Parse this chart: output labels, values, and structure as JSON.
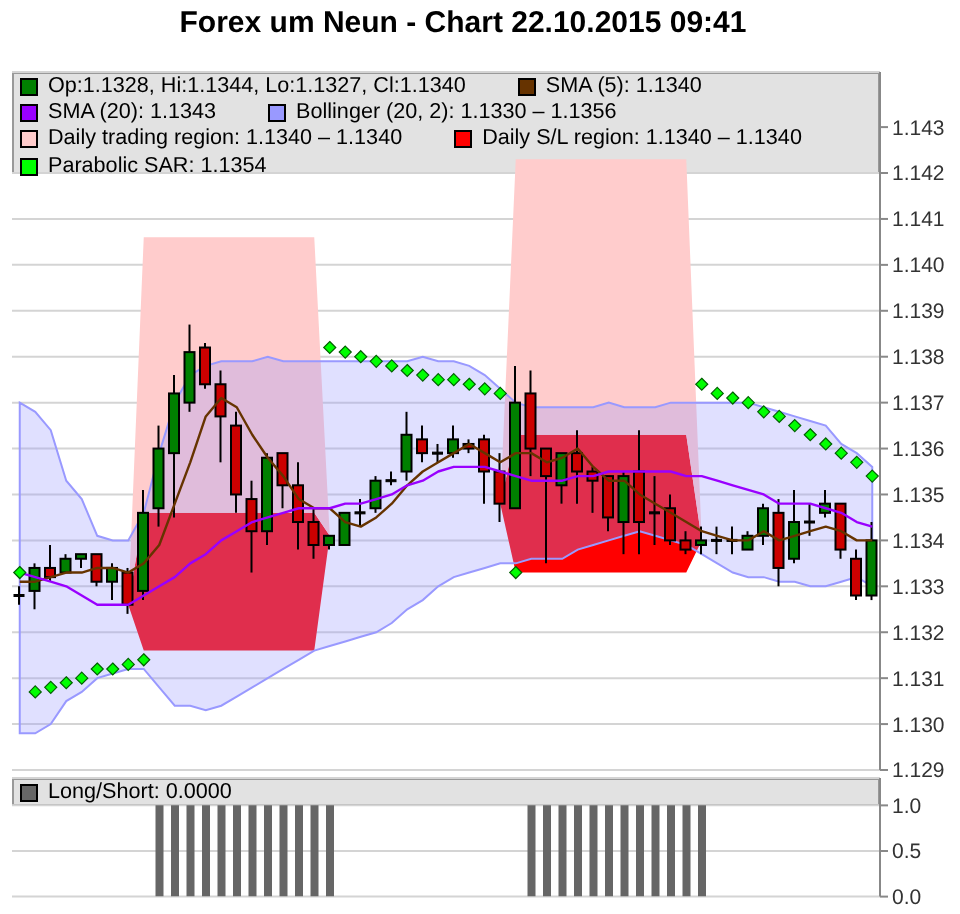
{
  "chart_data": [
    {
      "type": "candlestick",
      "title": "Forex um Neun - Chart 22.10.2015 09:41",
      "categories": [
        null,
        null,
        null,
        null,
        null,
        null,
        null,
        null,
        null,
        null,
        null,
        null,
        null,
        null,
        null,
        null,
        null,
        null,
        null,
        null,
        null,
        null,
        null,
        null,
        null,
        null,
        null,
        null,
        null,
        null,
        null,
        null,
        null,
        null,
        null,
        null,
        null,
        null,
        null,
        null,
        null,
        null,
        null,
        null,
        null,
        null,
        null,
        null,
        null,
        null,
        null,
        null,
        null,
        null,
        null,
        null
      ],
      "series": [
        {
          "name": "Op:1.1328, Hi:1.1344, Lo:1.1327, Cl:1.1340",
          "color": "#008000",
          "colors": [
            "#000000",
            "#008000",
            "#cc0000",
            "#008000",
            "#008000",
            "#cc0000",
            "#008000",
            "#cc0000",
            "#008000",
            "#008000",
            "#008000",
            "#008000",
            "#cc0000",
            "#cc0000",
            "#cc0000",
            "#cc0000",
            "#008000",
            "#cc0000",
            "#cc0000",
            "#cc0000",
            "#008000",
            "#008000",
            "#000000",
            "#008000",
            "#000000",
            "#008000",
            "#cc0000",
            "#000000",
            "#008000",
            "#cc0000",
            "#cc0000",
            "#cc0000",
            "#008000",
            "#cc0000",
            "#cc0000",
            "#008000",
            "#cc0000",
            "#cc0000",
            "#cc0000",
            "#008000",
            "#cc0000",
            "#000000",
            "#cc0000",
            "#cc0000",
            "#008000",
            "#000000",
            "#000000",
            "#008000",
            "#008000",
            "#cc0000",
            "#008000",
            "#000000",
            "#008000",
            "#cc0000",
            "#cc0000",
            "#008000"
          ],
          "ohlc": [
            [
              1.1328,
              1.133,
              1.1326,
              1.1328
            ],
            [
              1.1329,
              1.1335,
              1.1325,
              1.1334
            ],
            [
              1.1334,
              1.1339,
              1.1331,
              1.1332
            ],
            [
              1.1333,
              1.1337,
              1.1333,
              1.1336
            ],
            [
              1.1336,
              1.1337,
              1.1334,
              1.1337
            ],
            [
              1.1337,
              1.1337,
              1.133,
              1.1331
            ],
            [
              1.1331,
              1.1335,
              1.1327,
              1.1334
            ],
            [
              1.1333,
              1.1334,
              1.1324,
              1.1326
            ],
            [
              1.1329,
              1.1351,
              1.1327,
              1.1346
            ],
            [
              1.1347,
              1.1365,
              1.1343,
              1.136
            ],
            [
              1.1359,
              1.1376,
              1.1345,
              1.1372
            ],
            [
              1.137,
              1.1387,
              1.1368,
              1.1381
            ],
            [
              1.1382,
              1.1383,
              1.1373,
              1.1374
            ],
            [
              1.1374,
              1.1377,
              1.1357,
              1.1367
            ],
            [
              1.1365,
              1.1368,
              1.1346,
              1.135
            ],
            [
              1.1349,
              1.1353,
              1.1333,
              1.1342
            ],
            [
              1.1342,
              1.1359,
              1.1339,
              1.1358
            ],
            [
              1.1359,
              1.1359,
              1.1347,
              1.1352
            ],
            [
              1.1352,
              1.1357,
              1.1338,
              1.1344
            ],
            [
              1.1344,
              1.1347,
              1.1336,
              1.1339
            ],
            [
              1.1339,
              1.1341,
              1.1338,
              1.1341
            ],
            [
              1.1339,
              1.1346,
              1.1339,
              1.1346
            ],
            [
              1.1346,
              1.1349,
              1.1343,
              1.1346
            ],
            [
              1.1347,
              1.1354,
              1.1346,
              1.1353
            ],
            [
              1.1353,
              1.1355,
              1.1352,
              1.1353
            ],
            [
              1.1355,
              1.1368,
              1.1353,
              1.1363
            ],
            [
              1.1362,
              1.1365,
              1.1357,
              1.1359
            ],
            [
              1.1359,
              1.1361,
              1.1357,
              1.1359
            ],
            [
              1.1359,
              1.1365,
              1.1358,
              1.1362
            ],
            [
              1.1361,
              1.1362,
              1.1359,
              1.136
            ],
            [
              1.1362,
              1.1363,
              1.1348,
              1.1355
            ],
            [
              1.1355,
              1.1359,
              1.1344,
              1.1348
            ],
            [
              1.1347,
              1.1378,
              1.1347,
              1.137
            ],
            [
              1.1372,
              1.1377,
              1.1354,
              1.136
            ],
            [
              1.136,
              1.136,
              1.1335,
              1.1354
            ],
            [
              1.1352,
              1.1359,
              1.1348,
              1.1359
            ],
            [
              1.1359,
              1.1364,
              1.1348,
              1.1355
            ],
            [
              1.1355,
              1.1356,
              1.1346,
              1.1353
            ],
            [
              1.1354,
              1.1354,
              1.1342,
              1.1345
            ],
            [
              1.1344,
              1.1355,
              1.1337,
              1.1354
            ],
            [
              1.1355,
              1.1364,
              1.1337,
              1.1344
            ],
            [
              1.1346,
              1.1354,
              1.1339,
              1.1346
            ],
            [
              1.1347,
              1.135,
              1.1339,
              1.134
            ],
            [
              1.134,
              1.1342,
              1.1337,
              1.1338
            ],
            [
              1.1339,
              1.1343,
              1.1337,
              1.134
            ],
            [
              1.134,
              1.1343,
              1.1337,
              1.134
            ],
            [
              1.134,
              1.1343,
              1.1337,
              1.134
            ],
            [
              1.1338,
              1.1342,
              1.1338,
              1.1341
            ],
            [
              1.1341,
              1.1348,
              1.1339,
              1.1347
            ],
            [
              1.1346,
              1.1349,
              1.133,
              1.1334
            ],
            [
              1.1336,
              1.1351,
              1.1335,
              1.1344
            ],
            [
              1.1344,
              1.1348,
              1.1341,
              1.1344
            ],
            [
              1.1346,
              1.1351,
              1.1345,
              1.1348
            ],
            [
              1.1348,
              1.1348,
              1.1336,
              1.1338
            ],
            [
              1.1336,
              1.1338,
              1.1327,
              1.1328
            ],
            [
              1.1328,
              1.1344,
              1.1327,
              1.134
            ]
          ]
        },
        {
          "type": "line",
          "name": "SMA (5): 1.1340",
          "color": "#663300",
          "values": [
            1.1331,
            1.1331,
            1.1332,
            1.1333,
            1.1333,
            1.1334,
            1.1334,
            1.1333,
            1.1335,
            1.1339,
            1.1348,
            1.1357,
            1.1367,
            1.1371,
            1.1369,
            1.1363,
            1.1358,
            1.1354,
            1.1349,
            1.1347,
            1.1347,
            1.1344,
            1.1343,
            1.1345,
            1.1348,
            1.1352,
            1.1355,
            1.1357,
            1.1359,
            1.1361,
            1.1359,
            1.1357,
            1.1359,
            1.1359,
            1.1357,
            1.1358,
            1.136,
            1.1356,
            1.1353,
            1.1353,
            1.135,
            1.1348,
            1.1346,
            1.1344,
            1.1342,
            1.1341,
            1.134,
            1.134,
            1.1342,
            1.134,
            1.1341,
            1.1342,
            1.1343,
            1.1342,
            1.134,
            1.134
          ]
        },
        {
          "type": "line",
          "name": "SMA (20): 1.1343",
          "color": "#9900ff",
          "values": [
            1.1333,
            1.1332,
            1.1331,
            1.133,
            1.1328,
            1.1326,
            1.1326,
            1.1326,
            1.1328,
            1.133,
            1.1332,
            1.1335,
            1.1337,
            1.134,
            1.1342,
            1.1344,
            1.1345,
            1.1346,
            1.1347,
            1.1347,
            1.1347,
            1.1348,
            1.1348,
            1.1349,
            1.135,
            1.1352,
            1.1353,
            1.1355,
            1.1356,
            1.1356,
            1.1356,
            1.1355,
            1.1354,
            1.1353,
            1.1353,
            1.1353,
            1.1354,
            1.1354,
            1.1355,
            1.1355,
            1.1355,
            1.1355,
            1.1355,
            1.1354,
            1.1354,
            1.1353,
            1.1352,
            1.1351,
            1.135,
            1.1348,
            1.1348,
            1.1348,
            1.1347,
            1.1346,
            1.1344,
            1.1343
          ]
        },
        {
          "type": "area",
          "name": "Bollinger (20, 2): 1.1330 – 1.1356",
          "color": "#9999ff",
          "values": [
            null,
            null,
            null,
            null,
            null,
            null,
            null,
            null,
            null,
            null,
            null,
            null,
            null,
            null,
            null,
            null,
            null,
            null,
            null,
            null,
            null,
            null,
            null,
            null,
            null,
            null,
            null,
            null,
            null,
            null,
            null,
            null,
            null,
            null,
            null,
            null,
            null,
            null,
            null,
            null,
            null,
            null,
            null,
            null,
            null,
            null,
            null,
            null,
            null,
            null,
            null,
            null,
            null,
            null,
            null,
            null
          ],
          "upper": [
            1.137,
            1.1368,
            1.1364,
            1.1353,
            1.1349,
            1.1341,
            1.134,
            1.134,
            1.1346,
            1.1359,
            1.137,
            1.1376,
            1.1378,
            1.1379,
            1.1379,
            1.1379,
            1.138,
            1.1379,
            1.1379,
            1.1379,
            1.1379,
            1.1379,
            1.1379,
            1.1379,
            1.1379,
            1.1379,
            1.138,
            1.1379,
            1.1379,
            1.1378,
            1.1376,
            1.1373,
            1.137,
            1.1369,
            1.1369,
            1.1369,
            1.1369,
            1.1369,
            1.137,
            1.1369,
            1.1369,
            1.1369,
            1.137,
            1.137,
            1.137,
            1.137,
            1.137,
            1.137,
            1.1369,
            1.1368,
            1.1367,
            1.1366,
            1.1365,
            1.1361,
            1.1359,
            1.1356
          ],
          "lower": [
            1.1298,
            1.1298,
            1.13,
            1.1305,
            1.1307,
            1.131,
            1.1311,
            1.1312,
            1.1312,
            1.1308,
            1.1304,
            1.1304,
            1.1303,
            1.1304,
            1.1306,
            1.1308,
            1.131,
            1.1312,
            1.1314,
            1.1316,
            1.1317,
            1.1318,
            1.1319,
            1.132,
            1.1322,
            1.1325,
            1.1327,
            1.133,
            1.1332,
            1.1333,
            1.1334,
            1.1335,
            1.1335,
            1.1336,
            1.1336,
            1.1336,
            1.1338,
            1.1339,
            1.134,
            1.1341,
            1.1342,
            1.1341,
            1.134,
            1.1339,
            1.1337,
            1.1335,
            1.1333,
            1.1332,
            1.1332,
            1.1331,
            1.1331,
            1.133,
            1.133,
            1.1331,
            1.1332,
            1.133
          ]
        },
        {
          "type": "area",
          "name": "Daily trading region: 1.1340 – 1.1340",
          "color": "#ffcccc",
          "values": [
            null,
            null,
            null,
            null,
            null,
            null,
            null,
            null,
            null,
            null,
            null,
            null,
            null,
            null,
            null,
            null,
            null,
            null,
            null,
            null,
            null,
            null,
            null,
            null,
            null,
            null,
            null,
            null,
            null,
            null,
            null,
            null,
            null,
            null,
            null,
            null,
            null,
            null,
            null,
            null,
            null,
            null,
            null,
            null,
            null,
            null,
            null,
            null,
            null,
            null,
            null,
            null,
            null,
            null,
            null,
            null
          ],
          "upper": [
            null,
            null,
            null,
            null,
            null,
            null,
            null,
            1.1326,
            1.1406,
            1.1406,
            1.1406,
            1.1406,
            1.1406,
            1.1406,
            1.1406,
            1.1406,
            1.1406,
            1.1406,
            1.1406,
            1.1406,
            1.1341,
            null,
            null,
            null,
            null,
            null,
            null,
            null,
            null,
            null,
            null,
            1.1348,
            1.1423,
            1.1423,
            1.1423,
            1.1423,
            1.1423,
            1.1423,
            1.1423,
            1.1423,
            1.1423,
            1.1423,
            1.1423,
            1.1423,
            1.134,
            null,
            null,
            null,
            null,
            null,
            null,
            null,
            null,
            null,
            null,
            null
          ],
          "lower": [
            null,
            null,
            null,
            null,
            null,
            null,
            null,
            1.1326,
            1.1346,
            1.1346,
            1.1346,
            1.1346,
            1.1346,
            1.1346,
            1.1346,
            1.1346,
            1.1346,
            1.1346,
            1.1346,
            1.1346,
            1.1341,
            null,
            null,
            null,
            null,
            null,
            null,
            null,
            null,
            null,
            null,
            1.1348,
            1.1363,
            1.1363,
            1.1363,
            1.1363,
            1.1363,
            1.1363,
            1.1363,
            1.1363,
            1.1363,
            1.1363,
            1.1363,
            1.1363,
            1.134,
            null,
            null,
            null,
            null,
            null,
            null,
            null,
            null,
            null,
            null,
            null
          ]
        },
        {
          "type": "area",
          "name": "Daily S/L region: 1.1340 – 1.1340",
          "color": "#ff0000",
          "values": [
            null,
            null,
            null,
            null,
            null,
            null,
            null,
            null,
            null,
            null,
            null,
            null,
            null,
            null,
            null,
            null,
            null,
            null,
            null,
            null,
            null,
            null,
            null,
            null,
            null,
            null,
            null,
            null,
            null,
            null,
            null,
            null,
            null,
            null,
            null,
            null,
            null,
            null,
            null,
            null,
            null,
            null,
            null,
            null,
            null,
            null,
            null,
            null,
            null,
            null,
            null,
            null,
            null,
            null,
            null,
            null
          ],
          "upper": [
            null,
            null,
            null,
            null,
            null,
            null,
            null,
            1.1326,
            1.1346,
            1.1346,
            1.1346,
            1.1346,
            1.1346,
            1.1346,
            1.1346,
            1.1346,
            1.1346,
            1.1346,
            1.1346,
            1.1346,
            1.1341,
            null,
            null,
            null,
            null,
            null,
            null,
            null,
            null,
            null,
            null,
            1.1348,
            1.1363,
            1.1363,
            1.1363,
            1.1363,
            1.1363,
            1.1363,
            1.1363,
            1.1363,
            1.1363,
            1.1363,
            1.1363,
            1.1363,
            1.134,
            null,
            null,
            null,
            null,
            null,
            null,
            null,
            null,
            null,
            null,
            null
          ],
          "lower": [
            null,
            null,
            null,
            null,
            null,
            null,
            null,
            1.1326,
            1.1316,
            1.1316,
            1.1316,
            1.1316,
            1.1316,
            1.1316,
            1.1316,
            1.1316,
            1.1316,
            1.1316,
            1.1316,
            1.1316,
            1.1341,
            null,
            null,
            null,
            null,
            null,
            null,
            null,
            null,
            null,
            null,
            1.1348,
            1.1333,
            1.1333,
            1.1333,
            1.1333,
            1.1333,
            1.1333,
            1.1333,
            1.1333,
            1.1333,
            1.1333,
            1.1333,
            1.1333,
            1.134,
            null,
            null,
            null,
            null,
            null,
            null,
            null,
            null,
            null,
            null,
            null
          ]
        },
        {
          "type": "scatter",
          "name": "Parabolic SAR: 1.1354",
          "color": "#00ff00",
          "marker": "diamond",
          "values": [
            1.1333,
            1.1307,
            1.1308,
            1.1309,
            1.131,
            1.1312,
            1.1312,
            1.1313,
            1.1314,
            null,
            null,
            null,
            null,
            null,
            null,
            null,
            null,
            null,
            null,
            null,
            1.1382,
            1.1381,
            1.138,
            1.1379,
            1.1378,
            1.1377,
            1.1376,
            1.1375,
            1.1375,
            1.1374,
            1.1373,
            1.1372,
            1.1333,
            null,
            null,
            null,
            null,
            null,
            null,
            null,
            null,
            null,
            null,
            null,
            1.1374,
            1.1372,
            1.1371,
            1.137,
            1.1368,
            1.1367,
            1.1365,
            1.1363,
            1.1361,
            1.1359,
            1.1357,
            1.1354
          ]
        }
      ],
      "ylim": [
        1.129,
        1.1442
      ],
      "yticks": [
        1.129,
        {
          "value": 1.13,
          "label": "1.130"
        },
        1.131,
        1.132,
        1.133,
        1.134,
        1.135,
        1.136,
        1.137,
        1.138,
        1.139,
        {
          "value": 1.14,
          "label": "1.140"
        },
        1.141,
        1.142,
        1.143
      ],
      "grid": "y",
      "legend": "top",
      "tick_labels": "y"
    },
    {
      "type": "bar",
      "categories": [
        null,
        null,
        null,
        null,
        null,
        null,
        null,
        null,
        null,
        null,
        null,
        null,
        null,
        null,
        null,
        null,
        null,
        null,
        null,
        null,
        null,
        null,
        null,
        null,
        null,
        null,
        null,
        null,
        null,
        null,
        null,
        null,
        null,
        null,
        null,
        null,
        null,
        null,
        null,
        null,
        null,
        null,
        null,
        null,
        null,
        null,
        null,
        null,
        null,
        null,
        null,
        null,
        null,
        null,
        null,
        null
      ],
      "series": [
        {
          "name": "Long/Short: 0.0000",
          "color": "#666666",
          "values": [
            0,
            0,
            0,
            0,
            0,
            0,
            0,
            0,
            0,
            1,
            1,
            1,
            1,
            1,
            1,
            1,
            1,
            1,
            1,
            1,
            1,
            0,
            0,
            0,
            0,
            0,
            0,
            0,
            0,
            0,
            0,
            0,
            0,
            1,
            1,
            1,
            1,
            1,
            1,
            1,
            1,
            1,
            1,
            1,
            1,
            0,
            0,
            0,
            0,
            0,
            0,
            0,
            0,
            0,
            0,
            0
          ]
        }
      ],
      "ylim": [
        0,
        1.3
      ],
      "yticks": [
        {
          "value": 0,
          "label": "0.0"
        },
        {
          "value": 0.5,
          "label": "0.5"
        },
        {
          "value": 1,
          "label": "1.0"
        }
      ],
      "grid": "y",
      "legend": "top",
      "tick_labels": "y"
    }
  ]
}
